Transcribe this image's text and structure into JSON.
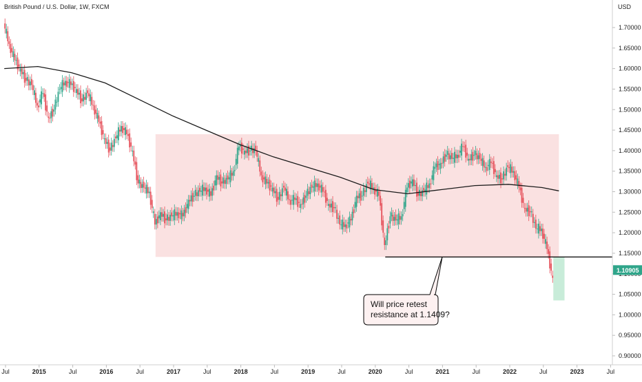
{
  "header": {
    "symbol_title": "British Pound / U.S. Dollar, 1W, FXCM"
  },
  "colors": {
    "up": "#2fa58a",
    "down": "#e5505a",
    "ma": "#1a1a1a",
    "range_box": "#f9dcdc",
    "target_box": "#c8ecd9",
    "price_badge": "#2fa58a"
  },
  "chart_data": {
    "type": "line",
    "title": "British Pound / U.S. Dollar, 1W, FXCM",
    "ylabel": "USD",
    "ylim": [
      0.88,
      1.745
    ],
    "y_ticks": [
      "1.70000",
      "1.65000",
      "1.60000",
      "1.55000",
      "1.50000",
      "1.45000",
      "1.40000",
      "1.35000",
      "1.30000",
      "1.25000",
      "1.20000",
      "1.15000",
      "1.10000",
      "1.05000",
      "1.00000",
      "0.95000",
      "0.90000"
    ],
    "x_ticks": [
      "Jul",
      "2015",
      "Jul",
      "2016",
      "Jul",
      "2017",
      "Jul",
      "2018",
      "Jul",
      "2019",
      "Jul",
      "2020",
      "Jul",
      "2021",
      "Jul",
      "2022",
      "Jul",
      "2023",
      "Jul"
    ],
    "last_price": "1.10905",
    "series": [
      {
        "kind": "price",
        "x": [
          "2014-07",
          "2014-08",
          "2014-09",
          "2014-10",
          "2014-11",
          "2014-12",
          "2015-01",
          "2015-02",
          "2015-03",
          "2015-04",
          "2015-05",
          "2015-06",
          "2015-07",
          "2015-08",
          "2015-09",
          "2015-10",
          "2015-11",
          "2015-12",
          "2016-01",
          "2016-02",
          "2016-03",
          "2016-04",
          "2016-05",
          "2016-06",
          "2016-07",
          "2016-08",
          "2016-09",
          "2016-10",
          "2016-11",
          "2016-12",
          "2017-01",
          "2017-02",
          "2017-03",
          "2017-04",
          "2017-05",
          "2017-06",
          "2017-07",
          "2017-08",
          "2017-09",
          "2017-10",
          "2017-11",
          "2017-12",
          "2018-01",
          "2018-02",
          "2018-03",
          "2018-04",
          "2018-05",
          "2018-06",
          "2018-07",
          "2018-08",
          "2018-09",
          "2018-10",
          "2018-11",
          "2018-12",
          "2019-01",
          "2019-02",
          "2019-03",
          "2019-04",
          "2019-05",
          "2019-06",
          "2019-07",
          "2019-08",
          "2019-09",
          "2019-10",
          "2019-11",
          "2019-12",
          "2020-01",
          "2020-02",
          "2020-03",
          "2020-04",
          "2020-05",
          "2020-06",
          "2020-07",
          "2020-08",
          "2020-09",
          "2020-10",
          "2020-11",
          "2020-12",
          "2021-01",
          "2021-02",
          "2021-03",
          "2021-04",
          "2021-05",
          "2021-06",
          "2021-07",
          "2021-08",
          "2021-09",
          "2021-10",
          "2021-11",
          "2021-12",
          "2022-01",
          "2022-02",
          "2022-03",
          "2022-04",
          "2022-05",
          "2022-06",
          "2022-07",
          "2022-08",
          "2022-09"
        ],
        "values": [
          1.71,
          1.66,
          1.62,
          1.6,
          1.57,
          1.56,
          1.51,
          1.54,
          1.48,
          1.5,
          1.55,
          1.57,
          1.56,
          1.55,
          1.52,
          1.54,
          1.51,
          1.47,
          1.43,
          1.4,
          1.43,
          1.46,
          1.44,
          1.4,
          1.32,
          1.31,
          1.3,
          1.22,
          1.25,
          1.23,
          1.24,
          1.25,
          1.24,
          1.28,
          1.29,
          1.3,
          1.31,
          1.29,
          1.34,
          1.32,
          1.33,
          1.35,
          1.41,
          1.4,
          1.4,
          1.4,
          1.34,
          1.32,
          1.31,
          1.28,
          1.31,
          1.28,
          1.28,
          1.27,
          1.29,
          1.31,
          1.32,
          1.3,
          1.27,
          1.26,
          1.22,
          1.22,
          1.23,
          1.29,
          1.29,
          1.32,
          1.31,
          1.29,
          1.17,
          1.24,
          1.23,
          1.24,
          1.31,
          1.33,
          1.29,
          1.3,
          1.32,
          1.36,
          1.37,
          1.39,
          1.38,
          1.39,
          1.41,
          1.38,
          1.39,
          1.38,
          1.36,
          1.37,
          1.34,
          1.33,
          1.36,
          1.35,
          1.31,
          1.26,
          1.25,
          1.21,
          1.21,
          1.16,
          1.09
        ]
      },
      {
        "kind": "moving_average",
        "x": [
          "2014-07",
          "2015-01",
          "2015-07",
          "2016-01",
          "2016-07",
          "2017-01",
          "2017-07",
          "2018-01",
          "2018-07",
          "2019-01",
          "2019-07",
          "2020-01",
          "2020-07",
          "2021-01",
          "2021-07",
          "2022-01",
          "2022-07",
          "2022-10"
        ],
        "values": [
          1.6,
          1.605,
          1.59,
          1.565,
          1.525,
          1.485,
          1.45,
          1.415,
          1.385,
          1.36,
          1.335,
          1.305,
          1.295,
          1.305,
          1.315,
          1.318,
          1.31,
          1.302
        ]
      }
    ],
    "annotations": {
      "range_box": {
        "x_start": "2016-10",
        "x_end": "2022-10",
        "y_low": 1.141,
        "y_high": 1.44
      },
      "resistance_line": {
        "x_start": "2020-03",
        "y": 1.1409
      },
      "target_box": {
        "x_start": "2022-09",
        "x_end": "2022-11",
        "y_low": 1.035,
        "y_high": 1.141
      },
      "callout": {
        "line1": "Will price retest",
        "line2": "resistance at 1.1409?"
      }
    }
  }
}
